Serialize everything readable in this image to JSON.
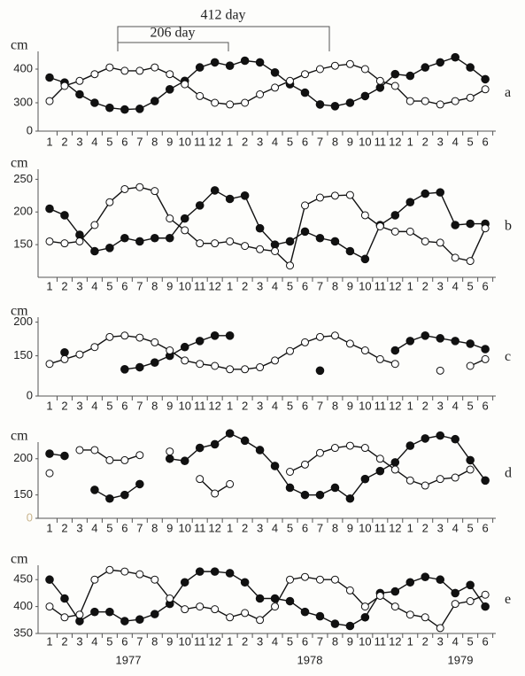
{
  "annotations": [
    "412 day",
    "206 day"
  ],
  "years": [
    "1977",
    "1978",
    "1979"
  ],
  "chart_data": [
    {
      "type": "line",
      "ylabel": "cm",
      "label": "a",
      "categories": [
        "1",
        "2",
        "3",
        "4",
        "5",
        "6",
        "7",
        "8",
        "9",
        "10",
        "11",
        "12",
        "1",
        "2",
        "3",
        "4",
        "5",
        "6",
        "7",
        "8",
        "9",
        "10",
        "11",
        "12",
        "1",
        "2",
        "3",
        "4",
        "5",
        "6"
      ],
      "ylim": [
        250,
        450
      ],
      "yticks": [
        300,
        400
      ],
      "break_tick": 0,
      "series": [
        {
          "color": "#111111",
          "marker": "filled",
          "values": [
            375,
            360,
            325,
            300,
            285,
            280,
            282,
            305,
            340,
            365,
            405,
            420,
            410,
            425,
            420,
            390,
            355,
            330,
            295,
            290,
            300,
            320,
            345,
            385,
            380,
            405,
            420,
            435,
            405,
            370
          ]
        },
        {
          "color": "#111111",
          "marker": "open",
          "values": [
            305,
            350,
            365,
            385,
            405,
            395,
            395,
            405,
            385,
            355,
            320,
            300,
            295,
            300,
            325,
            345,
            365,
            385,
            400,
            410,
            415,
            400,
            365,
            350,
            305,
            305,
            295,
            305,
            315,
            340
          ]
        }
      ]
    },
    {
      "type": "line",
      "ylabel": "cm",
      "label": "b",
      "categories": [
        "1",
        "2",
        "3",
        "4",
        "5",
        "6",
        "7",
        "8",
        "9",
        "10",
        "11",
        "12",
        "1",
        "2",
        "3",
        "4",
        "5",
        "6",
        "7",
        "8",
        "9",
        "10",
        "11",
        "12",
        "1",
        "2",
        "3",
        "4",
        "5",
        "6"
      ],
      "ylim": [
        100,
        260
      ],
      "yticks": [
        150,
        200,
        250
      ],
      "series": [
        {
          "color": "#111111",
          "marker": "filled",
          "values": [
            205,
            195,
            165,
            140,
            145,
            160,
            155,
            160,
            160,
            190,
            210,
            233,
            220,
            225,
            175,
            150,
            155,
            170,
            160,
            155,
            140,
            128,
            180,
            195,
            215,
            228,
            230,
            180,
            182,
            182
          ]
        },
        {
          "color": "#111111",
          "marker": "open",
          "values": [
            155,
            152,
            155,
            180,
            215,
            235,
            238,
            232,
            190,
            172,
            152,
            152,
            155,
            148,
            143,
            140,
            118,
            210,
            222,
            225,
            226,
            195,
            178,
            170,
            170,
            155,
            153,
            130,
            125,
            175
          ]
        }
      ]
    },
    {
      "type": "line",
      "ylabel": "cm",
      "label": "c",
      "categories": [
        "1",
        "2",
        "3",
        "4",
        "5",
        "6",
        "7",
        "8",
        "9",
        "10",
        "11",
        "12",
        "1",
        "2",
        "3",
        "4",
        "5",
        "6",
        "7",
        "8",
        "9",
        "10",
        "11",
        "12",
        "1",
        "2",
        "3",
        "4",
        "5",
        "6"
      ],
      "ylim": [
        110,
        210
      ],
      "yticks": [
        150,
        200
      ],
      "break_tick": 0,
      "series": [
        {
          "color": "#111111",
          "marker": "filled",
          "values": [
            null,
            155,
            null,
            null,
            null,
            130,
            133,
            140,
            150,
            163,
            172,
            180,
            180,
            null,
            null,
            null,
            null,
            null,
            128,
            null,
            null,
            null,
            null,
            158,
            172,
            180,
            176,
            172,
            168,
            160
          ]
        },
        {
          "color": "#111111",
          "marker": "open",
          "values": [
            138,
            145,
            152,
            163,
            178,
            180,
            177,
            170,
            158,
            143,
            138,
            135,
            130,
            130,
            133,
            143,
            157,
            170,
            178,
            180,
            168,
            158,
            145,
            138,
            null,
            null,
            128,
            null,
            135,
            145
          ]
        }
      ]
    },
    {
      "type": "line",
      "ylabel": "cm",
      "label": "d",
      "categories": [
        "1",
        "2",
        "3",
        "4",
        "5",
        "6",
        "7",
        "8",
        "9",
        "10",
        "11",
        "12",
        "1",
        "2",
        "3",
        "4",
        "5",
        "6",
        "7",
        "8",
        "9",
        "10",
        "11",
        "12",
        "1",
        "2",
        "3",
        "4",
        "5",
        "6"
      ],
      "ylim": [
        130,
        245
      ],
      "yticks": [
        150,
        200
      ],
      "break_tick": 0,
      "break_tick_color": "#c8b48c",
      "series": [
        {
          "color": "#111111",
          "marker": "filled",
          "values": [
            207,
            204,
            null,
            157,
            145,
            150,
            165,
            null,
            200,
            197,
            215,
            220,
            235,
            225,
            212,
            190,
            160,
            150,
            150,
            160,
            145,
            172,
            183,
            195,
            218,
            228,
            232,
            227,
            198,
            170
          ]
        },
        {
          "color": "#111111",
          "marker": "open",
          "values": [
            180,
            null,
            212,
            212,
            198,
            198,
            205,
            null,
            210,
            null,
            172,
            152,
            165,
            null,
            null,
            null,
            182,
            192,
            208,
            215,
            218,
            215,
            200,
            185,
            170,
            163,
            172,
            174,
            185,
            null
          ]
        }
      ]
    },
    {
      "type": "line",
      "ylabel": "cm",
      "label": "e",
      "categories": [
        "1",
        "2",
        "3",
        "4",
        "5",
        "6",
        "7",
        "8",
        "9",
        "10",
        "11",
        "12",
        "1",
        "2",
        "3",
        "4",
        "5",
        "6",
        "7",
        "8",
        "9",
        "10",
        "11",
        "12",
        "1",
        "2",
        "3",
        "4",
        "5",
        "6"
      ],
      "ylim": [
        350,
        480
      ],
      "yticks": [
        350,
        400,
        450
      ],
      "series": [
        {
          "color": "#111111",
          "marker": "filled",
          "values": [
            450,
            415,
            373,
            390,
            390,
            373,
            376,
            386,
            405,
            445,
            465,
            465,
            462,
            445,
            415,
            415,
            410,
            390,
            382,
            368,
            364,
            380,
            425,
            428,
            445,
            455,
            450,
            425,
            440,
            400
          ]
        },
        {
          "color": "#111111",
          "marker": "open",
          "values": [
            400,
            380,
            385,
            450,
            468,
            465,
            460,
            450,
            415,
            395,
            400,
            395,
            380,
            388,
            375,
            400,
            450,
            455,
            450,
            450,
            430,
            400,
            420,
            400,
            385,
            380,
            360,
            405,
            410,
            422
          ]
        }
      ]
    }
  ]
}
